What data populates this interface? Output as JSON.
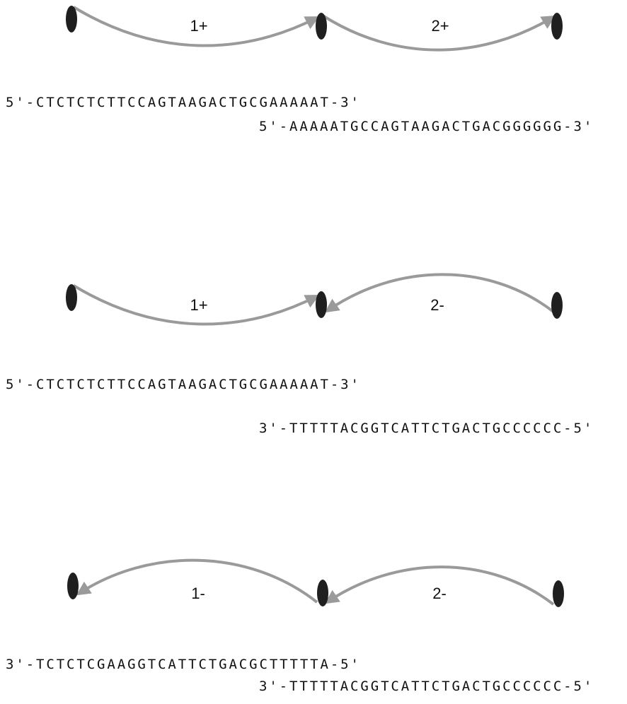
{
  "colors": {
    "node": "#1f1f1f",
    "edge": "#9a9a9a",
    "text": "#111111",
    "background": "#ffffff"
  },
  "panels": [
    {
      "edges": [
        {
          "label": "1+",
          "direction": "forward"
        },
        {
          "label": "2+",
          "direction": "forward"
        }
      ],
      "sequences": [
        "5'-CTCTCTCTTCCAGTAAGACTGCGAAAAAT-3'",
        "5'-AAAAATGCCAGTAAGACTGACGGGGGG-3'"
      ]
    },
    {
      "edges": [
        {
          "label": "1+",
          "direction": "forward"
        },
        {
          "label": "2-",
          "direction": "reverse"
        }
      ],
      "sequences": [
        "5'-CTCTCTCTTCCAGTAAGACTGCGAAAAAT-3'",
        "3'-TTTTTACGGTCATTCTGACTGCCCCCC-5'"
      ]
    },
    {
      "edges": [
        {
          "label": "1-",
          "direction": "reverse"
        },
        {
          "label": "2-",
          "direction": "reverse"
        }
      ],
      "sequences": [
        "3'-TCTCTCGAAGGTCATTCTGACGCTTTTTA-5'",
        "3'-TTTTTACGGTCATTCTGACTGCCCCCC-5'"
      ]
    }
  ]
}
